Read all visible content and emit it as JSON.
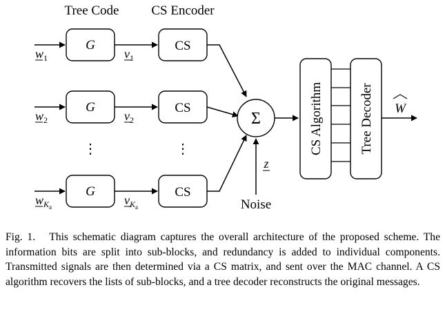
{
  "headers": {
    "tree_code": "Tree Code",
    "cs_encoder": "CS Encoder"
  },
  "encoder_rows": [
    {
      "input": "w",
      "input_sub": "1",
      "mid": "v",
      "mid_sub": "1",
      "g_label": "G",
      "cs_label": "CS"
    },
    {
      "input": "w",
      "input_sub": "2",
      "mid": "v",
      "mid_sub": "2",
      "g_label": "G",
      "cs_label": "CS"
    },
    {
      "input": "w",
      "input_sub": "K",
      "input_sub2": "a",
      "mid": "v",
      "mid_sub": "K",
      "mid_sub2": "a",
      "g_label": "G",
      "cs_label": "CS"
    }
  ],
  "ellipsis": "⋮",
  "sum_symbol": "Σ",
  "noise": {
    "variable": "z",
    "label": "Noise"
  },
  "decoder": {
    "cs_algorithm": "CS Algorithm",
    "tree_decoder": "Tree Decoder",
    "output": "W"
  },
  "caption": {
    "prefix": "Fig. 1.",
    "text": "This schematic diagram captures the overall architecture of the proposed scheme. The information bits are split into sub-blocks, and redundancy is added to individual components. Transmitted signals are then determined via a CS matrix, and sent over the MAC channel. A CS algorithm recovers the lists of sub-blocks, and a tree decoder reconstructs the original messages."
  }
}
